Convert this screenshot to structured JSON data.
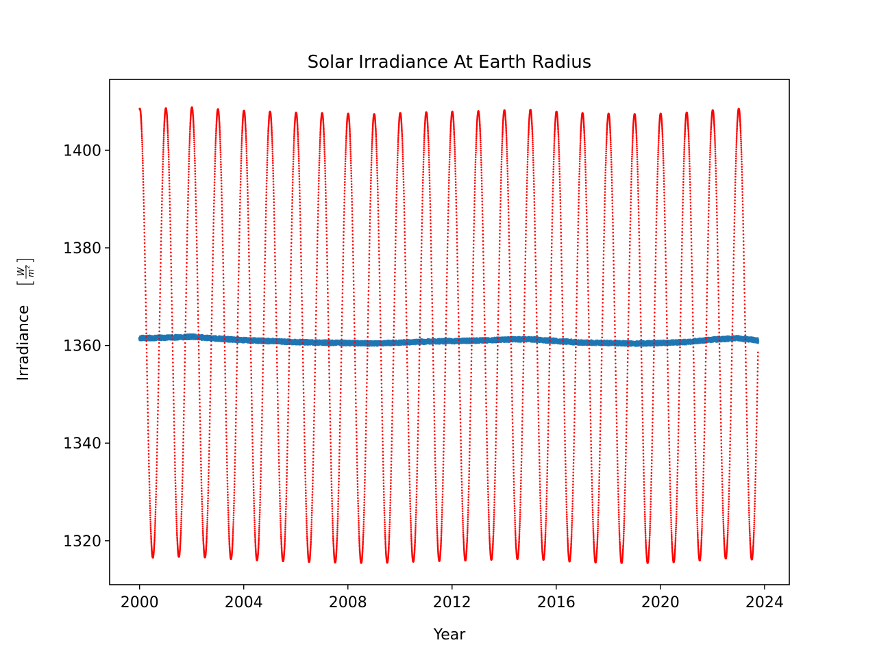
{
  "chart_data": {
    "type": "scatter",
    "title": "Solar Irradiance At Earth Radius",
    "xlabel": "Year",
    "ylabel": "Irradiance",
    "ylabel_unit_numerator": "W",
    "ylabel_unit_denominator": "m",
    "ylabel_unit_exponent": "2",
    "xlim": [
      1998.85,
      2024.95
    ],
    "ylim": [
      1311,
      1414.5
    ],
    "xticks": [
      2000,
      2004,
      2008,
      2012,
      2016,
      2020,
      2024
    ],
    "xtick_labels": [
      "2000",
      "2004",
      "2008",
      "2012",
      "2016",
      "2020",
      "2024"
    ],
    "yticks": [
      1320,
      1340,
      1360,
      1380,
      1400
    ],
    "ytick_labels": [
      "1320",
      "1340",
      "1360",
      "1380",
      "1400"
    ],
    "grid": false,
    "legend": false,
    "x_range": [
      2000.0,
      2023.75
    ],
    "series": [
      {
        "color": "#ff0000",
        "marker": "dot",
        "description_value_min": 1316,
        "description_value_max": 1408,
        "peak_month_of_year": "early January (perihelion)",
        "trough_month_of_year": "early July (aphelion)",
        "start_value": 1408,
        "end_value": 1351
      },
      {
        "color": "#1f77b4",
        "marker": "dot",
        "values_by_year": {
          "x": [
            2000,
            2001,
            2002,
            2003,
            2004,
            2005,
            2006,
            2007,
            2008,
            2009,
            2010,
            2011,
            2012,
            2013,
            2014,
            2015,
            2016,
            2017,
            2018,
            2019,
            2020,
            2021,
            2022,
            2023,
            2023.75
          ],
          "y": [
            1361.5,
            1361.6,
            1361.8,
            1361.4,
            1361.1,
            1360.9,
            1360.7,
            1360.6,
            1360.5,
            1360.4,
            1360.6,
            1360.8,
            1360.9,
            1361.0,
            1361.2,
            1361.3,
            1360.9,
            1360.6,
            1360.5,
            1360.4,
            1360.5,
            1360.7,
            1361.2,
            1361.5,
            1361.0
          ]
        }
      }
    ]
  }
}
